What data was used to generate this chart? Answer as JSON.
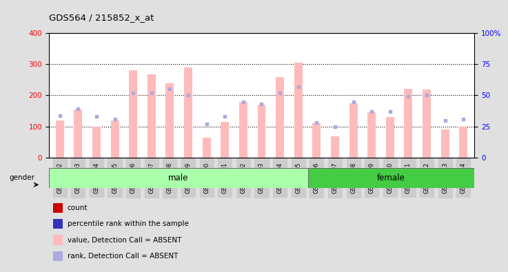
{
  "title": "GDS564 / 215852_x_at",
  "samples": [
    "GSM19192",
    "GSM19193",
    "GSM19194",
    "GSM19195",
    "GSM19196",
    "GSM19197",
    "GSM19198",
    "GSM19199",
    "GSM19200",
    "GSM19201",
    "GSM19202",
    "GSM19203",
    "GSM19204",
    "GSM19205",
    "GSM19206",
    "GSM19207",
    "GSM19208",
    "GSM19209",
    "GSM19210",
    "GSM19211",
    "GSM19212",
    "GSM19213",
    "GSM19214"
  ],
  "bar_values": [
    120,
    155,
    100,
    120,
    280,
    268,
    238,
    288,
    65,
    115,
    180,
    170,
    258,
    305,
    110,
    70,
    175,
    145,
    130,
    220,
    218,
    90,
    100
  ],
  "dot_values": [
    34,
    39,
    33,
    31,
    52,
    52,
    55,
    50,
    27,
    33,
    45,
    43,
    52,
    57,
    28,
    25,
    45,
    37,
    37,
    49,
    50,
    30,
    31
  ],
  "male_count": 14,
  "female_count": 9,
  "ylim_left": [
    0,
    400
  ],
  "ylim_right": [
    0,
    100
  ],
  "yticks_left": [
    0,
    100,
    200,
    300,
    400
  ],
  "yticks_right": [
    0,
    25,
    50,
    75,
    100
  ],
  "ytick_right_labels": [
    "0",
    "25",
    "50",
    "75",
    "100%"
  ],
  "bar_color_absent": "#ffbbbb",
  "dot_color_absent": "#aaaadd",
  "male_bg_light": "#ccffcc",
  "male_bg": "#aaffaa",
  "female_bg": "#44cc44",
  "grid_color": "black",
  "grid_style": "dotted",
  "bg_color": "#e0e0e0",
  "plot_bg": "white",
  "xtick_bg": "#cccccc",
  "legend_colors": [
    "#cc0000",
    "#3333bb",
    "#ffbbbb",
    "#aaaadd"
  ],
  "legend_labels": [
    "count",
    "percentile rank within the sample",
    "value, Detection Call = ABSENT",
    "rank, Detection Call = ABSENT"
  ]
}
